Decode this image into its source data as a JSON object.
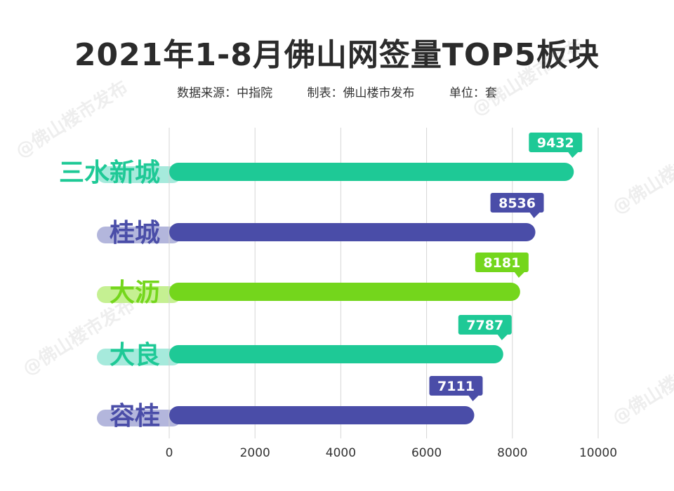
{
  "title": "2021年1-8月佛山网签量TOP5板块",
  "subtitle": {
    "source": "数据来源：中指院",
    "maker": "制表：佛山楼市发布",
    "unit": "单位：套"
  },
  "watermark": "@佛山楼市发布",
  "chart_data": {
    "type": "bar",
    "orientation": "horizontal",
    "title": "2021年1-8月佛山网签量TOP5板块",
    "categories": [
      "三水新城",
      "桂城",
      "大沥",
      "大良",
      "容桂"
    ],
    "values": [
      9432,
      8536,
      8181,
      7787,
      7111
    ],
    "data_labels": [
      "9432",
      "8536",
      "8181",
      "7787",
      "7111"
    ],
    "xlim": [
      0,
      10000
    ],
    "xticks": [
      0,
      2000,
      4000,
      6000,
      8000,
      10000
    ],
    "xtick_labels": [
      "0",
      "2000",
      "4000",
      "6000",
      "8000",
      "10000"
    ],
    "grid": true,
    "colors": [
      "#1ec996",
      "#4a4da8",
      "#74d61c",
      "#1ec996",
      "#4a4da8"
    ],
    "tab_colors": [
      "#a6eadc",
      "#b3b6dc",
      "#c5f092",
      "#a6eadc",
      "#b3b6dc"
    ]
  }
}
